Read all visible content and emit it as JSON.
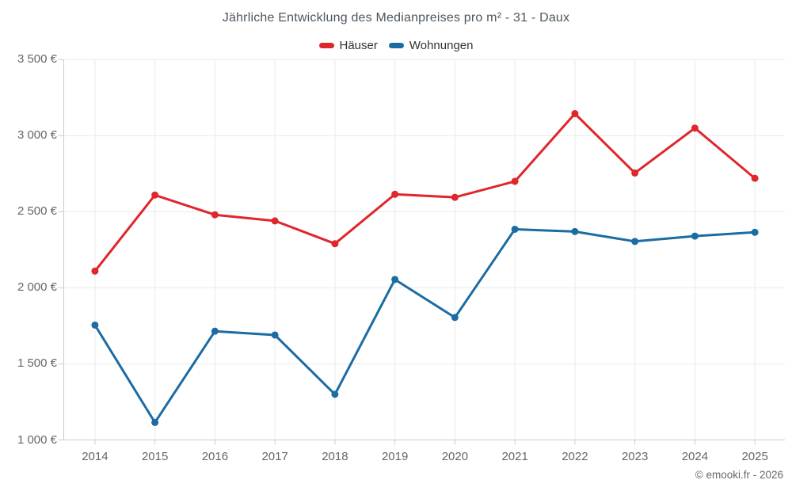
{
  "title": "Jährliche Entwicklung des Medianpreises pro m² - 31 - Daux",
  "footer": {
    "copyright": "© emooki.fr - 2026"
  },
  "colors": {
    "hauser": "#df262c",
    "wohnungen": "#1b6ca3",
    "gridline": "#e9e9e9",
    "axis_line": "#cccccc",
    "axis_text": "#666666",
    "title_text": "#4d565e",
    "legend_text": "#333333"
  },
  "chart_data": {
    "type": "line",
    "title": "Jährliche Entwicklung des Medianpreises pro m² - 31 - Daux",
    "x": [
      2014,
      2015,
      2016,
      2017,
      2018,
      2019,
      2020,
      2021,
      2022,
      2023,
      2024,
      2025
    ],
    "series": [
      {
        "name": "Häuser",
        "color": "#df262c",
        "values": [
          2110,
          2610,
          2480,
          2440,
          2290,
          2615,
          2595,
          2700,
          3145,
          2755,
          3050,
          2720
        ]
      },
      {
        "name": "Wohnungen",
        "color": "#1b6ca3",
        "values": [
          1755,
          1115,
          1715,
          1690,
          1300,
          2055,
          1805,
          2385,
          2370,
          2305,
          2340,
          2365
        ]
      }
    ],
    "xlabel": "",
    "ylabel": "",
    "ylim": [
      1000,
      3500
    ],
    "ytick_step": 500,
    "ytick_labels": [
      "1 000 €",
      "1 500 €",
      "2 000 €",
      "2 500 €",
      "3 000 €",
      "3 500 €"
    ],
    "grid": true,
    "legend_position": "top",
    "marker": "circle"
  }
}
